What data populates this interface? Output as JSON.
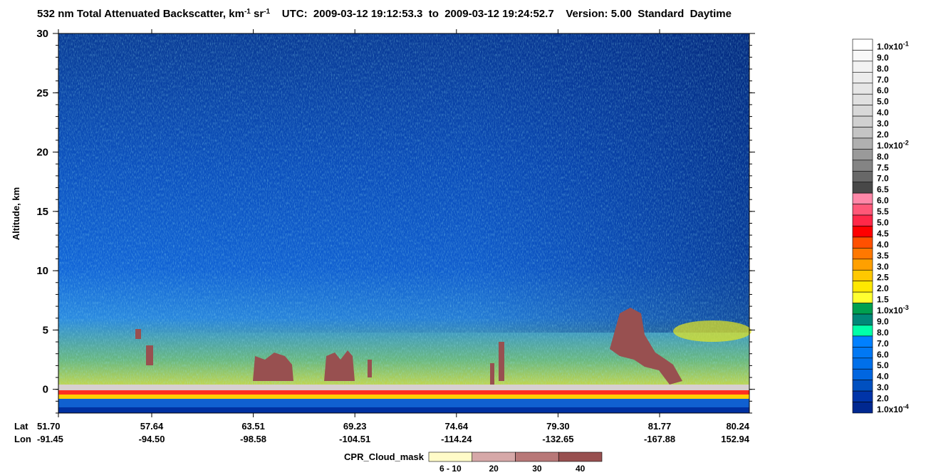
{
  "chart_data": {
    "type": "curtain",
    "title_parts": [
      {
        "text": "532 nm Total Attenuated Backscatter, km"
      },
      {
        "text": "-1",
        "sup": true
      },
      {
        "text": " sr"
      },
      {
        "text": "-1",
        "sup": true
      },
      {
        "text": "    UTC:  2009-03-12 19:12:53.3  to  2009-03-12 19:24:52.7    Version: 5.00  Standard  Daytime"
      }
    ],
    "y_label": "Altitude, km",
    "ylim": [
      -2,
      30
    ],
    "yticks": [
      0,
      5,
      10,
      15,
      20,
      25,
      30
    ],
    "x_rows": [
      {
        "name": "Lat",
        "values": [
          "51.70",
          "57.64",
          "63.51",
          "69.23",
          "74.64",
          "79.30",
          "81.77",
          "80.24"
        ]
      },
      {
        "name": "Lon",
        "values": [
          "-91.45",
          "-94.50",
          "-98.58",
          "-104.51",
          "-114.24",
          "-132.65",
          "-167.88",
          "152.94"
        ]
      }
    ],
    "colorbar": {
      "labels": [
        {
          "text": "1.0x10",
          "exp": "-1"
        },
        {
          "text": "9.0"
        },
        {
          "text": "8.0"
        },
        {
          "text": "7.0"
        },
        {
          "text": "6.0"
        },
        {
          "text": "5.0"
        },
        {
          "text": "4.0"
        },
        {
          "text": "3.0"
        },
        {
          "text": "2.0"
        },
        {
          "text": "1.0x10",
          "exp": "-2"
        },
        {
          "text": "8.0"
        },
        {
          "text": "7.5"
        },
        {
          "text": "7.0"
        },
        {
          "text": "6.5"
        },
        {
          "text": "6.0"
        },
        {
          "text": "5.5"
        },
        {
          "text": "5.0"
        },
        {
          "text": "4.5"
        },
        {
          "text": "4.0"
        },
        {
          "text": "3.5"
        },
        {
          "text": "3.0"
        },
        {
          "text": "2.5"
        },
        {
          "text": "2.0"
        },
        {
          "text": "1.5"
        },
        {
          "text": "1.0x10",
          "exp": "-3"
        },
        {
          "text": "9.0"
        },
        {
          "text": "8.0"
        },
        {
          "text": "7.0"
        },
        {
          "text": "6.0"
        },
        {
          "text": "5.0"
        },
        {
          "text": "4.0"
        },
        {
          "text": "3.0"
        },
        {
          "text": "2.0"
        },
        {
          "text": "1.0x10",
          "exp": "-4"
        }
      ],
      "colors": [
        "#ffffff",
        "#f8f8f8",
        "#f2f2f2",
        "#ececec",
        "#e6e6e6",
        "#e0e0e0",
        "#d8d8d8",
        "#d0d0d0",
        "#c4c4c4",
        "#b0b0b0",
        "#9a9a9a",
        "#848484",
        "#686868",
        "#484848",
        "#ff88a8",
        "#ff5878",
        "#ff2848",
        "#ff0000",
        "#ff5000",
        "#ff7800",
        "#ffa000",
        "#ffc800",
        "#ffe800",
        "#ffff30",
        "#00a050",
        "#008878",
        "#00ffa8",
        "#0080ff",
        "#0078f4",
        "#0070ea",
        "#0066e0",
        "#0050c0",
        "#0034a8",
        "#002890"
      ]
    },
    "cpr_legend": {
      "title": "CPR_Cloud_mask",
      "labels": [
        "6 - 10",
        "20",
        "30",
        "40"
      ],
      "colors": [
        "#fffbc8",
        "#d6a8a8",
        "#b87878",
        "#985050"
      ]
    }
  }
}
